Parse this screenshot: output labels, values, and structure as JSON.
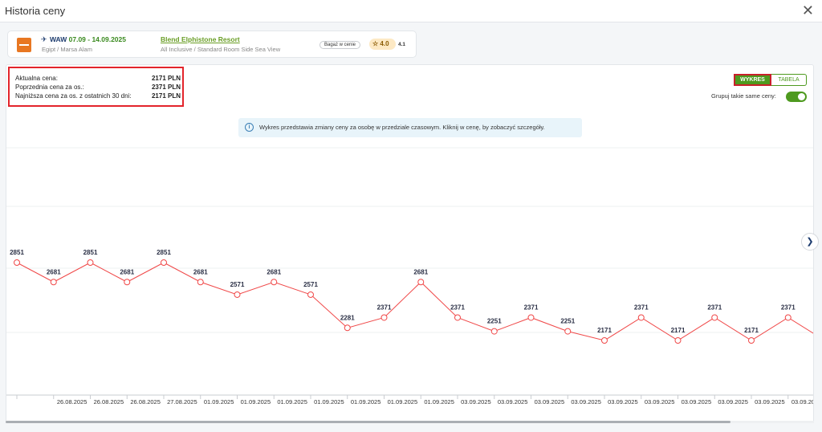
{
  "dialog": {
    "title": "Historia ceny",
    "close_icon": "close-icon"
  },
  "offer": {
    "route_from": "WAW",
    "dates": "07.09 - 14.09.2025",
    "destination": "Egipt / Marsa Alam",
    "hotel_name": "Blend Elphistone Resort",
    "hotel_desc": "All Inclusive / Standard Room Side Sea View",
    "baggage_badge": "Bagaż w cenie",
    "rating": "4.0",
    "rating_secondary": "4.1",
    "icons": {
      "plane": "plane-icon",
      "star": "star-icon",
      "logo": "tour-operator-logo"
    }
  },
  "prices": [
    {
      "label": "Aktualna cena:",
      "value": "2171 PLN"
    },
    {
      "label": "Poprzednia cena za os.:",
      "value": "2371 PLN"
    },
    {
      "label": "Najniższa cena za os. z ostatnich 30 dni:",
      "value": "2171 PLN"
    }
  ],
  "view_toggle": {
    "chart": "WYKRES",
    "table": "TABELA",
    "selected": "WYKRES"
  },
  "group_same_prices": {
    "label": "Grupuj takie same ceny:",
    "enabled": true
  },
  "notice": "Wykres przedstawia zmiany ceny za osobę w przedziale czasowym. Kliknij w cenę, by zobaczyć szczegóły.",
  "colors": {
    "line": "#f04848",
    "accent_green": "#4e9a1f",
    "highlight_red": "#e3242b"
  },
  "chart_data": {
    "type": "line",
    "x": [
      "",
      "26.08.2025",
      "26.08.2025",
      "26.08.2025",
      "27.08.2025",
      "01.09.2025",
      "01.09.2025",
      "01.09.2025",
      "01.09.2025",
      "01.09.2025",
      "01.09.2025",
      "01.09.2025",
      "03.09.2025",
      "03.09.2025",
      "03.09.2025",
      "03.09.2025",
      "03.09.2025",
      "03.09.2025",
      "03.09.2025",
      "03.09.2025",
      "03.09.2025",
      "03.09.2025",
      "03"
    ],
    "series": [
      {
        "values": [
          2851,
          2681,
          2851,
          2681,
          2851,
          2681,
          2571,
          2681,
          2571,
          2281,
          2371,
          2681,
          2371,
          2251,
          2371,
          2251,
          2171,
          2371,
          2171,
          2371,
          2171,
          2371,
          2171
        ],
        "labels": [
          "2851",
          "2681",
          "2851",
          "2681",
          "2851",
          "2681",
          "2571",
          "2681",
          "2571",
          "2281",
          "2371",
          "2681",
          "2371",
          "2251",
          "2371",
          "2251",
          "2171",
          "2371",
          "2171",
          "2371",
          "2171",
          "2371",
          ""
        ]
      }
    ],
    "grid": true,
    "legend": "none"
  },
  "nav": {
    "next_icon": "chevron-right-icon"
  }
}
